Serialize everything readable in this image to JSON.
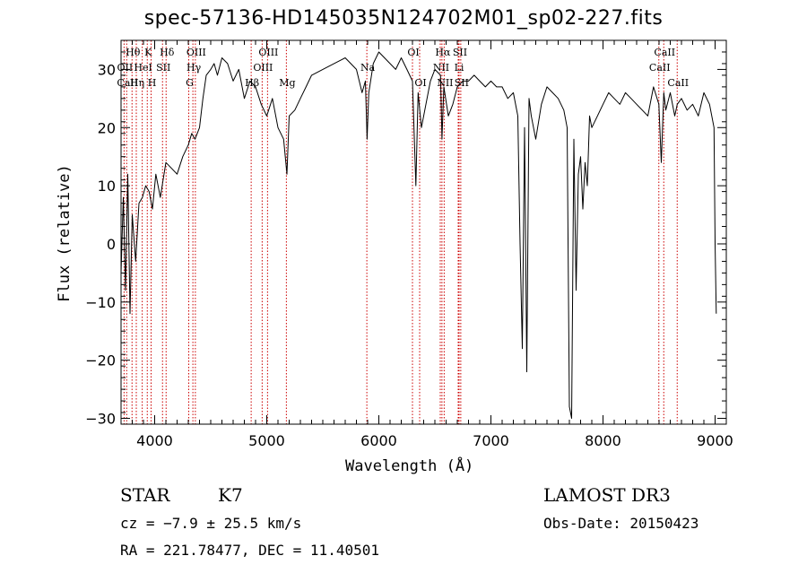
{
  "chart_data": {
    "type": "line",
    "title": "spec-57136-HD145035N124702M01_sp02-227.fits",
    "xlabel": "Wavelength (Å)",
    "ylabel": "Flux (relative)",
    "xlim": [
      3700,
      9100
    ],
    "ylim": [
      -31,
      35
    ],
    "xticks": [
      4000,
      5000,
      6000,
      7000,
      8000,
      9000
    ],
    "yticks": [
      -30,
      -20,
      -10,
      0,
      10,
      20,
      30
    ],
    "grid": false,
    "series": [
      {
        "x": [
          3700,
          3720,
          3740,
          3760,
          3780,
          3800,
          3830,
          3860,
          3890,
          3920,
          3950,
          3980,
          4010,
          4050,
          4100,
          4150,
          4200,
          4250,
          4300,
          4330,
          4360,
          4400,
          4430,
          4460,
          4500,
          4530,
          4560,
          4600,
          4650,
          4700,
          4750,
          4800,
          4850,
          4900,
          4950,
          5000,
          5050,
          5100,
          5150,
          5180,
          5200,
          5250,
          5300,
          5350,
          5400,
          5500,
          5600,
          5700,
          5800,
          5850,
          5880,
          5895,
          5910,
          5950,
          6000,
          6050,
          6100,
          6150,
          6200,
          6250,
          6300,
          6330,
          6350,
          6380,
          6420,
          6460,
          6500,
          6550,
          6563,
          6580,
          6620,
          6660,
          6700,
          6750,
          6800,
          6850,
          6900,
          6950,
          7000,
          7050,
          7100,
          7150,
          7200,
          7240,
          7260,
          7280,
          7300,
          7320,
          7340,
          7360,
          7380,
          7400,
          7450,
          7500,
          7550,
          7600,
          7650,
          7680,
          7700,
          7720,
          7740,
          7760,
          7780,
          7800,
          7820,
          7840,
          7860,
          7880,
          7900,
          7950,
          8000,
          8050,
          8100,
          8150,
          8200,
          8250,
          8300,
          8350,
          8400,
          8450,
          8498,
          8520,
          8542,
          8560,
          8600,
          8640,
          8662,
          8700,
          8750,
          8800,
          8850,
          8900,
          8950,
          8990,
          9000,
          9010
        ],
        "y": [
          -5,
          8,
          -8,
          12,
          -12,
          5,
          -3,
          7,
          8,
          10,
          9,
          6,
          12,
          8,
          14,
          13,
          12,
          15,
          17,
          19,
          18,
          20,
          25,
          29,
          30,
          31,
          29,
          32,
          31,
          28,
          30,
          25,
          28,
          27,
          24,
          22,
          25,
          20,
          18,
          12,
          22,
          23,
          25,
          27,
          29,
          30,
          31,
          32,
          30,
          26,
          28,
          18,
          26,
          31,
          33,
          32,
          31,
          30,
          32,
          30,
          28,
          10,
          26,
          20,
          24,
          28,
          30,
          29,
          18,
          27,
          22,
          24,
          27,
          28,
          28,
          29,
          28,
          27,
          28,
          27,
          27,
          25,
          26,
          22,
          0,
          -18,
          20,
          -22,
          25,
          22,
          20,
          18,
          24,
          27,
          26,
          25,
          23,
          20,
          -28,
          -30,
          18,
          -8,
          12,
          15,
          6,
          14,
          10,
          22,
          20,
          22,
          24,
          26,
          25,
          24,
          26,
          25,
          24,
          23,
          22,
          27,
          24,
          14,
          26,
          23,
          26,
          22,
          24,
          25,
          23,
          24,
          22,
          26,
          24,
          20,
          0,
          -12
        ]
      }
    ],
    "line_markers": [
      {
        "label": "Hθ",
        "x": 3798,
        "row": 0
      },
      {
        "label": "OII",
        "x": 3727,
        "row": 1
      },
      {
        "label": "CaII",
        "x": 3750,
        "row": 2
      },
      {
        "label": "Hη",
        "x": 3836,
        "row": 2
      },
      {
        "label": "K",
        "x": 3934,
        "row": 0
      },
      {
        "label": "HeI",
        "x": 3889,
        "row": 1
      },
      {
        "label": "H",
        "x": 3968,
        "row": 2
      },
      {
        "label": "SII",
        "x": 4070,
        "row": 1
      },
      {
        "label": "Hδ",
        "x": 4102,
        "row": 0
      },
      {
        "label": "OIII",
        "x": 4363,
        "row": 0
      },
      {
        "label": "Hγ",
        "x": 4341,
        "row": 1
      },
      {
        "label": "G",
        "x": 4304,
        "row": 2
      },
      {
        "label": "Hβ",
        "x": 4861,
        "row": 2
      },
      {
        "label": "OIII",
        "x": 5007,
        "row": 0
      },
      {
        "label": "OIII",
        "x": 4959,
        "row": 1
      },
      {
        "label": "Mg",
        "x": 5175,
        "row": 2
      },
      {
        "label": "Na",
        "x": 5893,
        "row": 1
      },
      {
        "label": "OI",
        "x": 6300,
        "row": 0
      },
      {
        "label": "OI",
        "x": 6364,
        "row": 2
      },
      {
        "label": "Hα",
        "x": 6563,
        "row": 0
      },
      {
        "label": "NII",
        "x": 6548,
        "row": 1
      },
      {
        "label": "NII",
        "x": 6583,
        "row": 2
      },
      {
        "label": "SII",
        "x": 6716,
        "row": 0
      },
      {
        "label": "Li",
        "x": 6708,
        "row": 1
      },
      {
        "label": "SII",
        "x": 6731,
        "row": 2
      },
      {
        "label": "CaII",
        "x": 8542,
        "row": 0
      },
      {
        "label": "CaII",
        "x": 8498,
        "row": 1
      },
      {
        "label": "CaII",
        "x": 8662,
        "row": 2
      }
    ],
    "marker_color": "#cc0000"
  },
  "info": {
    "class_label": "STAR",
    "subclass": "K7",
    "survey": "LAMOST DR3",
    "cz": "cz = −7.9 ± 25.5 km/s",
    "obs_date": "Obs-Date: 20150423",
    "coords": "RA = 221.78477, DEC =  11.40501"
  }
}
